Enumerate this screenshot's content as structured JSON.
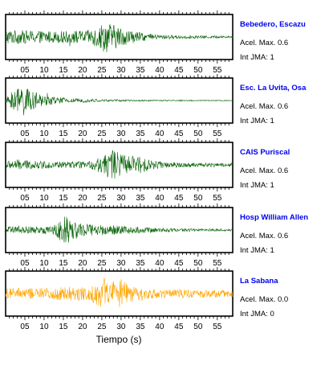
{
  "chart_data": [
    {
      "type": "line",
      "station": "Bebedero, Escazu",
      "acel_max": "Acel. Max. 0.6",
      "int_jma": "Int JMA: 1",
      "color": "#0a640a",
      "xlim": [
        0,
        59
      ],
      "x_ticks": [
        "05",
        "10",
        "15",
        "20",
        "25",
        "30",
        "35",
        "40",
        "45",
        "50",
        "55"
      ],
      "envelope": [
        [
          0,
          0.42
        ],
        [
          4,
          0.38
        ],
        [
          8,
          0.36
        ],
        [
          12,
          0.33
        ],
        [
          18,
          0.35
        ],
        [
          22,
          0.4
        ],
        [
          24,
          0.65
        ],
        [
          26,
          0.9
        ],
        [
          28,
          0.7
        ],
        [
          31,
          0.45
        ],
        [
          35,
          0.25
        ],
        [
          40,
          0.12
        ],
        [
          50,
          0.08
        ],
        [
          59,
          0.06
        ]
      ]
    },
    {
      "type": "line",
      "station": "Esc. La Uvita, Osa",
      "acel_max": "Acel. Max. 0.6",
      "int_jma": "Int JMA: 1",
      "color": "#0a640a",
      "xlim": [
        0,
        59
      ],
      "x_ticks": [
        "05",
        "10",
        "15",
        "20",
        "25",
        "30",
        "35",
        "40",
        "45",
        "50",
        "55"
      ],
      "envelope": [
        [
          0,
          0.1
        ],
        [
          1,
          0.35
        ],
        [
          3,
          0.75
        ],
        [
          4.5,
          0.95
        ],
        [
          6,
          0.6
        ],
        [
          9,
          0.35
        ],
        [
          13,
          0.2
        ],
        [
          18,
          0.12
        ],
        [
          25,
          0.07
        ],
        [
          35,
          0.04
        ],
        [
          59,
          0.02
        ]
      ]
    },
    {
      "type": "line",
      "station": "CAIS Puriscal",
      "acel_max": "Acel. Max. 0.6",
      "int_jma": "Int JMA: 1",
      "color": "#0a640a",
      "xlim": [
        0,
        59
      ],
      "x_ticks": [
        "05",
        "10",
        "15",
        "20",
        "25",
        "30",
        "35",
        "40",
        "45",
        "50",
        "55"
      ],
      "envelope": [
        [
          0,
          0.2
        ],
        [
          3,
          0.3
        ],
        [
          7,
          0.22
        ],
        [
          12,
          0.2
        ],
        [
          18,
          0.18
        ],
        [
          22,
          0.22
        ],
        [
          25,
          0.5
        ],
        [
          27,
          0.9
        ],
        [
          29,
          0.75
        ],
        [
          32,
          0.5
        ],
        [
          35,
          0.55
        ],
        [
          37,
          0.3
        ],
        [
          42,
          0.15
        ],
        [
          50,
          0.12
        ],
        [
          59,
          0.1
        ]
      ]
    },
    {
      "type": "line",
      "station": "Hosp William Allen",
      "acel_max": "Acel. Max. 0.6",
      "int_jma": "Int JMA: 1",
      "color": "#0a640a",
      "xlim": [
        0,
        59
      ],
      "x_ticks": [
        "05",
        "10",
        "15",
        "20",
        "25",
        "30",
        "35",
        "40",
        "45",
        "50",
        "55"
      ],
      "envelope": [
        [
          0,
          0.18
        ],
        [
          5,
          0.2
        ],
        [
          10,
          0.22
        ],
        [
          13,
          0.3
        ],
        [
          14.5,
          0.7
        ],
        [
          15.5,
          0.95
        ],
        [
          17,
          0.6
        ],
        [
          20,
          0.4
        ],
        [
          24,
          0.3
        ],
        [
          28,
          0.28
        ],
        [
          33,
          0.2
        ],
        [
          40,
          0.12
        ],
        [
          50,
          0.08
        ],
        [
          59,
          0.06
        ]
      ]
    },
    {
      "type": "line",
      "station": "La Sabana",
      "acel_max": "Acel. Max. 0.0",
      "int_jma": "Int JMA: 0",
      "color": "#ffa500",
      "xlim": [
        0,
        59
      ],
      "x_ticks": [
        "05",
        "10",
        "15",
        "20",
        "25",
        "30",
        "35",
        "40",
        "45",
        "50",
        "55"
      ],
      "envelope": [
        [
          0,
          0.3
        ],
        [
          4,
          0.32
        ],
        [
          8,
          0.3
        ],
        [
          12,
          0.32
        ],
        [
          16,
          0.45
        ],
        [
          19,
          0.4
        ],
        [
          22,
          0.42
        ],
        [
          24,
          0.75
        ],
        [
          26,
          0.95
        ],
        [
          28,
          0.75
        ],
        [
          30,
          0.85
        ],
        [
          32,
          0.5
        ],
        [
          35,
          0.32
        ],
        [
          42,
          0.25
        ],
        [
          50,
          0.22
        ],
        [
          59,
          0.2
        ]
      ]
    }
  ],
  "xlabel": "Tiempo (s)"
}
